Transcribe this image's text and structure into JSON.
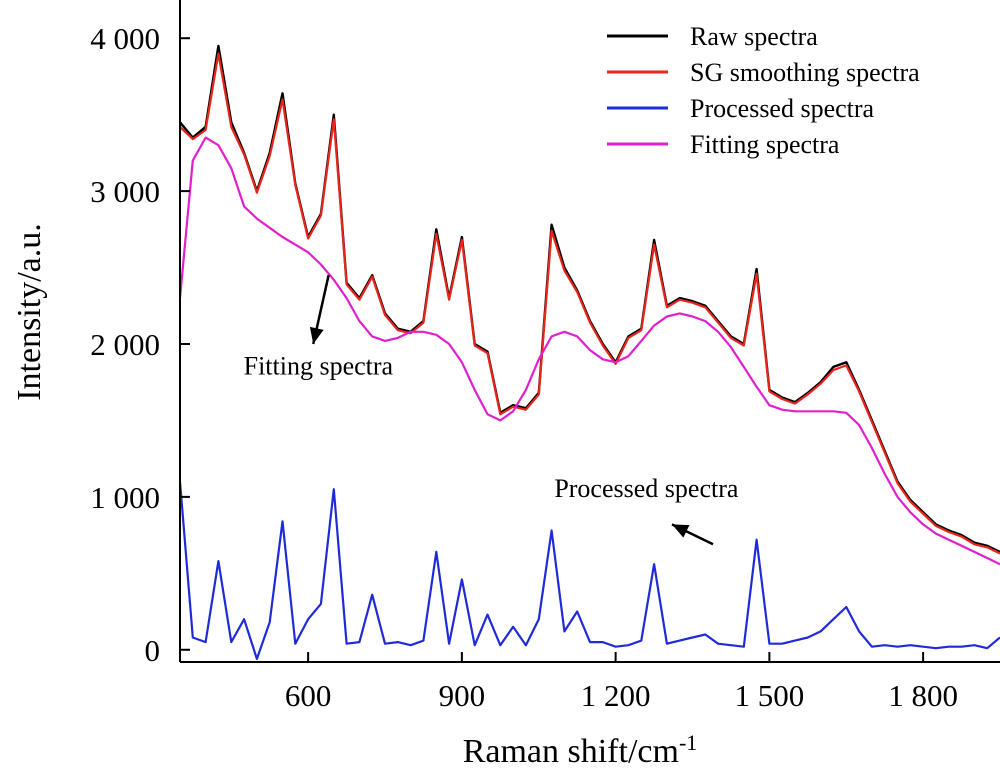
{
  "chart_data": {
    "type": "line",
    "xlabel": "Raman shift/cm",
    "xlabel_sup": "-1",
    "ylabel": "Intensity/a.u.",
    "xlim": [
      350,
      1950
    ],
    "ylim": [
      -80,
      4250
    ],
    "xticks": [
      {
        "value": 600,
        "label": "600"
      },
      {
        "value": 900,
        "label": "900"
      },
      {
        "value": 1200,
        "label": "1 200"
      },
      {
        "value": 1500,
        "label": "1 500"
      },
      {
        "value": 1800,
        "label": "1 800"
      }
    ],
    "yticks": [
      {
        "value": 0,
        "label": "0"
      },
      {
        "value": 1000,
        "label": "1 000"
      },
      {
        "value": 2000,
        "label": "2 000"
      },
      {
        "value": 3000,
        "label": "3 000"
      },
      {
        "value": 4000,
        "label": "4 000"
      }
    ],
    "legend": {
      "position": "top-right"
    },
    "series": [
      {
        "name": "Raw spectra",
        "color": "#000000",
        "x": [
          350,
          375,
          400,
          425,
          450,
          475,
          500,
          525,
          550,
          575,
          600,
          625,
          650,
          675,
          700,
          725,
          750,
          775,
          800,
          825,
          850,
          875,
          900,
          925,
          950,
          975,
          1000,
          1025,
          1050,
          1075,
          1100,
          1125,
          1150,
          1175,
          1200,
          1225,
          1250,
          1275,
          1300,
          1325,
          1350,
          1375,
          1400,
          1425,
          1450,
          1475,
          1500,
          1525,
          1550,
          1575,
          1600,
          1625,
          1650,
          1675,
          1700,
          1725,
          1750,
          1775,
          1800,
          1825,
          1850,
          1875,
          1900,
          1925,
          1950
        ],
        "y": [
          3450,
          3350,
          3420,
          3950,
          3450,
          3250,
          3000,
          3250,
          3640,
          3050,
          2700,
          2850,
          3500,
          2400,
          2300,
          2450,
          2200,
          2100,
          2080,
          2150,
          2750,
          2300,
          2700,
          2000,
          1950,
          1550,
          1600,
          1580,
          1680,
          2780,
          2500,
          2350,
          2150,
          2000,
          1880,
          2050,
          2100,
          2680,
          2250,
          2300,
          2280,
          2250,
          2150,
          2050,
          2000,
          2490,
          1700,
          1650,
          1620,
          1680,
          1750,
          1850,
          1880,
          1700,
          1500,
          1300,
          1100,
          980,
          900,
          820,
          780,
          750,
          700,
          680,
          640
        ]
      },
      {
        "name": "SG smoothing spectra",
        "color": "#e8251b",
        "x": [
          350,
          375,
          400,
          425,
          450,
          475,
          500,
          525,
          550,
          575,
          600,
          625,
          650,
          675,
          700,
          725,
          750,
          775,
          800,
          825,
          850,
          875,
          900,
          925,
          950,
          975,
          1000,
          1025,
          1050,
          1075,
          1100,
          1125,
          1150,
          1175,
          1200,
          1225,
          1250,
          1275,
          1300,
          1325,
          1350,
          1375,
          1400,
          1425,
          1450,
          1475,
          1500,
          1525,
          1550,
          1575,
          1600,
          1625,
          1650,
          1675,
          1700,
          1725,
          1750,
          1775,
          1800,
          1825,
          1850,
          1875,
          1900,
          1925,
          1950
        ],
        "y": [
          3420,
          3340,
          3400,
          3900,
          3420,
          3240,
          2990,
          3230,
          3600,
          3040,
          2690,
          2840,
          3470,
          2390,
          2290,
          2440,
          2190,
          2090,
          2070,
          2140,
          2720,
          2290,
          2680,
          1990,
          1940,
          1540,
          1590,
          1570,
          1670,
          2740,
          2480,
          2340,
          2140,
          1990,
          1870,
          2040,
          2090,
          2650,
          2240,
          2290,
          2270,
          2240,
          2140,
          2040,
          1990,
          2460,
          1690,
          1640,
          1610,
          1670,
          1740,
          1830,
          1860,
          1690,
          1490,
          1290,
          1090,
          970,
          890,
          810,
          770,
          740,
          690,
          670,
          630
        ]
      },
      {
        "name": "Processed spectra",
        "color": "#1f2bd8",
        "x": [
          350,
          375,
          400,
          425,
          450,
          475,
          500,
          525,
          550,
          575,
          600,
          625,
          650,
          675,
          700,
          725,
          750,
          775,
          800,
          825,
          850,
          875,
          900,
          925,
          950,
          975,
          1000,
          1025,
          1050,
          1075,
          1100,
          1125,
          1150,
          1175,
          1200,
          1225,
          1250,
          1275,
          1300,
          1325,
          1350,
          1375,
          1400,
          1425,
          1450,
          1475,
          1500,
          1525,
          1550,
          1575,
          1600,
          1625,
          1650,
          1675,
          1700,
          1725,
          1750,
          1775,
          1800,
          1825,
          1850,
          1875,
          1900,
          1925,
          1950
        ],
        "y": [
          1100,
          80,
          50,
          580,
          50,
          200,
          -60,
          180,
          840,
          40,
          200,
          300,
          1050,
          40,
          50,
          360,
          40,
          50,
          30,
          60,
          640,
          40,
          460,
          30,
          230,
          30,
          150,
          30,
          200,
          780,
          120,
          250,
          50,
          50,
          20,
          30,
          60,
          560,
          40,
          60,
          80,
          100,
          40,
          30,
          20,
          720,
          40,
          40,
          60,
          80,
          120,
          200,
          280,
          120,
          20,
          30,
          20,
          30,
          20,
          10,
          20,
          20,
          30,
          10,
          80
        ]
      },
      {
        "name": "Fitting spectra",
        "color": "#e020cc",
        "x": [
          350,
          375,
          400,
          425,
          450,
          475,
          500,
          525,
          550,
          575,
          600,
          625,
          650,
          675,
          700,
          725,
          750,
          775,
          800,
          825,
          850,
          875,
          900,
          925,
          950,
          975,
          1000,
          1025,
          1050,
          1075,
          1100,
          1125,
          1150,
          1175,
          1200,
          1225,
          1250,
          1275,
          1300,
          1325,
          1350,
          1375,
          1400,
          1425,
          1450,
          1475,
          1500,
          1525,
          1550,
          1575,
          1600,
          1625,
          1650,
          1675,
          1700,
          1725,
          1750,
          1775,
          1800,
          1825,
          1850,
          1875,
          1900,
          1925,
          1950
        ],
        "y": [
          2300,
          3200,
          3350,
          3300,
          3150,
          2900,
          2820,
          2760,
          2700,
          2650,
          2600,
          2520,
          2420,
          2300,
          2150,
          2050,
          2020,
          2040,
          2080,
          2080,
          2060,
          2000,
          1880,
          1700,
          1540,
          1500,
          1560,
          1700,
          1900,
          2050,
          2080,
          2050,
          1960,
          1900,
          1880,
          1920,
          2020,
          2120,
          2180,
          2200,
          2180,
          2150,
          2080,
          1980,
          1850,
          1720,
          1600,
          1570,
          1560,
          1560,
          1560,
          1560,
          1550,
          1470,
          1320,
          1150,
          1000,
          900,
          820,
          760,
          720,
          680,
          640,
          600,
          560
        ]
      }
    ],
    "annotations": [
      {
        "text": "Fitting spectra",
        "x": 620,
        "y": 1800,
        "arrow_from": [
          640,
          2450
        ],
        "arrow_to": [
          610,
          2000
        ]
      },
      {
        "text": "Processed spectra",
        "x": 1260,
        "y": 1000,
        "arrow_from": [
          1390,
          690
        ],
        "arrow_to": [
          1310,
          820
        ]
      }
    ]
  }
}
